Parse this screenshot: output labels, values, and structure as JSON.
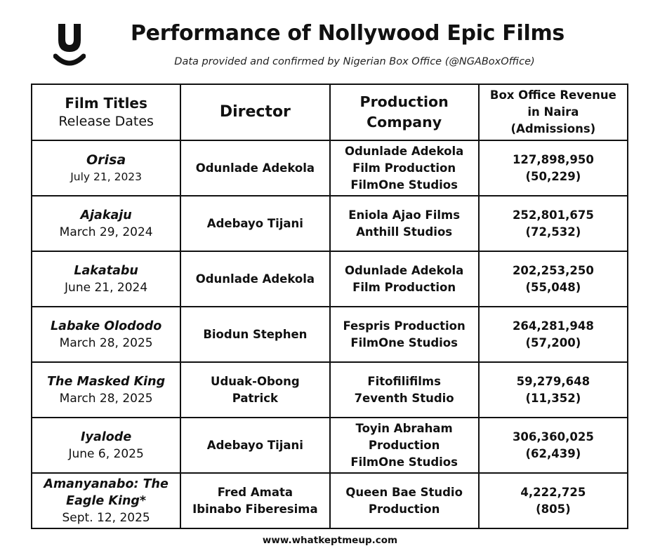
{
  "header": {
    "logo_icon": "smiling-u-logo-icon",
    "title": "Performance of Nollywood Epic Films",
    "subtitle": "Data provided and confirmed by Nigerian Box Office (@NGABoxOffice)"
  },
  "table": {
    "headers": {
      "film_titles": "Film Titles",
      "release_dates": "Release Dates",
      "director": "Director",
      "production": [
        "Production",
        "Company"
      ],
      "revenue": [
        "Box Office Revenue",
        "in Naira",
        "(Admissions)"
      ]
    },
    "rows": [
      {
        "title": "Orisa",
        "date": "July 21, 2023",
        "director": [
          "Odunlade Adekola"
        ],
        "company": [
          "Odunlade Adekola",
          "Film Production",
          "FilmOne Studios"
        ],
        "revenue": "127,898,950",
        "admissions": "(50,229)"
      },
      {
        "title": "Ajakaju",
        "date": "March 29, 2024",
        "director": [
          "Adebayo Tijani"
        ],
        "company": [
          "Eniola Ajao Films",
          "Anthill Studios"
        ],
        "revenue": "252,801,675",
        "admissions": "(72,532)"
      },
      {
        "title": "Lakatabu",
        "date": "June 21, 2024",
        "director": [
          "Odunlade Adekola"
        ],
        "company": [
          "Odunlade Adekola",
          "Film Production"
        ],
        "revenue": "202,253,250",
        "admissions": "(55,048)"
      },
      {
        "title": "Labake Olododo",
        "date": "March 28, 2025",
        "director": [
          "Biodun Stephen"
        ],
        "company": [
          "Fespris Production",
          "FilmOne Studios"
        ],
        "revenue": "264,281,948",
        "admissions": "(57,200)"
      },
      {
        "title": "The Masked King",
        "date": "March 28, 2025",
        "director": [
          "Uduak-Obong",
          "Patrick"
        ],
        "company": [
          "Fitofilifilms",
          "7eventh Studio"
        ],
        "revenue": "59,279,648",
        "admissions": "(11,352)"
      },
      {
        "title": "Iyalode",
        "date": "June 6, 2025",
        "director": [
          "Adebayo Tijani"
        ],
        "company": [
          "Toyin Abraham",
          "Production",
          "FilmOne Studios"
        ],
        "revenue": "306,360,025",
        "admissions": "(62,439)"
      },
      {
        "title": [
          "Amanyanabo: The",
          "Eagle King*"
        ],
        "date": "Sept. 12, 2025",
        "director": [
          "Fred Amata",
          "Ibinabo Fiberesima"
        ],
        "company": [
          "Queen Bae Studio",
          "Production"
        ],
        "revenue": "4,222,725",
        "admissions": "(805)"
      }
    ]
  },
  "footer": {
    "website": "www.whatkeptmeup.com"
  }
}
